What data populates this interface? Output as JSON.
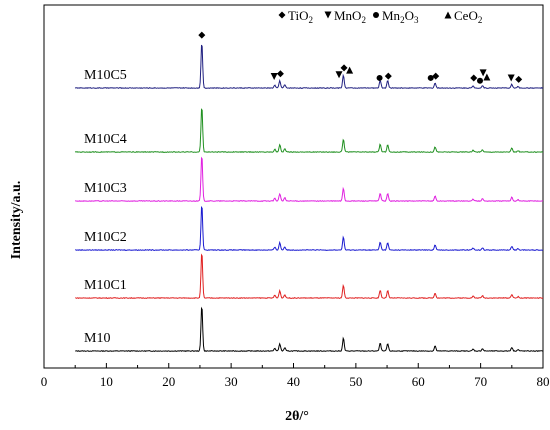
{
  "chart_data": {
    "type": "line",
    "title": "",
    "xlabel": "2θ/°",
    "ylabel": "Intensity/a.u.",
    "xlim": [
      0,
      80
    ],
    "x_ticks": [
      "0",
      "10",
      "20",
      "30",
      "40",
      "50",
      "60",
      "70",
      "80"
    ],
    "x_range": [
      5,
      80
    ],
    "grid": false,
    "legend": {
      "placement": "top-right",
      "entries": [
        {
          "symbol": "diamond",
          "base": "TiO",
          "sub": "2",
          "base2": "",
          "sub2": ""
        },
        {
          "symbol": "triangle-down",
          "base": "MnO",
          "sub": "2",
          "base2": "",
          "sub2": ""
        },
        {
          "symbol": "circle",
          "base": "Mn",
          "sub": "2",
          "base2": "O",
          "sub2": "3"
        },
        {
          "symbol": "triangle-up",
          "base": "CeO",
          "sub": "2",
          "base2": "",
          "sub2": ""
        }
      ]
    },
    "peaks": [
      {
        "two_theta": 25.3,
        "height": 1.0
      },
      {
        "two_theta": 37.0,
        "height": 0.06
      },
      {
        "two_theta": 37.8,
        "height": 0.16
      },
      {
        "two_theta": 38.6,
        "height": 0.07
      },
      {
        "two_theta": 48.0,
        "height": 0.28
      },
      {
        "two_theta": 53.9,
        "height": 0.17
      },
      {
        "two_theta": 55.1,
        "height": 0.16
      },
      {
        "two_theta": 62.7,
        "height": 0.11
      },
      {
        "two_theta": 68.8,
        "height": 0.04
      },
      {
        "two_theta": 70.3,
        "height": 0.05
      },
      {
        "two_theta": 75.0,
        "height": 0.08
      },
      {
        "two_theta": 76.0,
        "height": 0.03
      }
    ],
    "series": [
      {
        "name": "M10",
        "color": "#000000"
      },
      {
        "name": "M10C1",
        "color": "#e02020"
      },
      {
        "name": "M10C2",
        "color": "#1a1ad0"
      },
      {
        "name": "M10C3",
        "color": "#e020e0"
      },
      {
        "name": "M10C4",
        "color": "#209020"
      },
      {
        "name": "M10C5",
        "color": "#202080"
      }
    ],
    "annotations": [
      {
        "symbol": "diamond",
        "two_theta": 25.3,
        "height": 1.04
      },
      {
        "symbol": "triangle-down",
        "two_theta": 36.9,
        "height": 0.14
      },
      {
        "symbol": "diamond",
        "two_theta": 37.9,
        "height": 0.2
      },
      {
        "symbol": "triangle-down",
        "two_theta": 47.3,
        "height": 0.18
      },
      {
        "symbol": "diamond",
        "two_theta": 48.1,
        "height": 0.33
      },
      {
        "symbol": "triangle-up",
        "two_theta": 49.0,
        "height": 0.28
      },
      {
        "symbol": "circle",
        "two_theta": 53.8,
        "height": 0.11
      },
      {
        "symbol": "diamond",
        "two_theta": 55.2,
        "height": 0.15
      },
      {
        "symbol": "circle",
        "two_theta": 62.0,
        "height": 0.11
      },
      {
        "symbol": "diamond",
        "two_theta": 62.8,
        "height": 0.15
      },
      {
        "symbol": "diamond",
        "two_theta": 68.9,
        "height": 0.11
      },
      {
        "symbol": "circle",
        "two_theta": 69.9,
        "height": 0.05
      },
      {
        "symbol": "triangle-down",
        "two_theta": 70.4,
        "height": 0.22
      },
      {
        "symbol": "triangle-up",
        "two_theta": 71.0,
        "height": 0.13
      },
      {
        "symbol": "triangle-down",
        "two_theta": 74.9,
        "height": 0.11
      },
      {
        "symbol": "diamond",
        "two_theta": 76.1,
        "height": 0.08
      }
    ]
  }
}
